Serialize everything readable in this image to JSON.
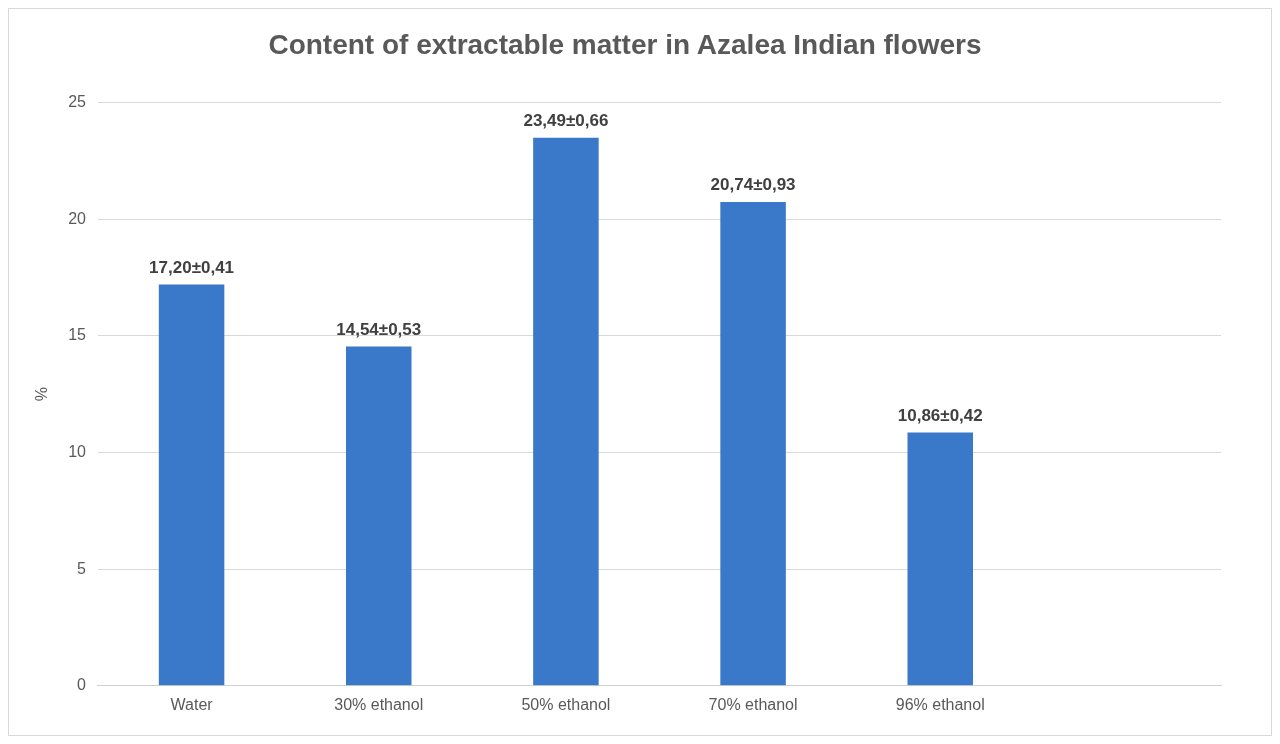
{
  "chart_data": {
    "type": "bar",
    "title": "Content of extractable matter in Azalea Indian flowers",
    "ylabel": "%",
    "categories": [
      "Water",
      "30% ethanol",
      "50% ethanol",
      "70% ethanol",
      "96% ethanol",
      null
    ],
    "values": [
      17.2,
      14.54,
      23.49,
      20.74,
      10.86,
      null
    ],
    "value_labels": [
      "17,20±0,41",
      "14,54±0,53",
      "23,49±0,66",
      "20,74±0,93",
      "10,86±0,42",
      null
    ],
    "color": "#3a78c9",
    "ylim": [
      0,
      25
    ],
    "yticks": [
      0,
      5,
      10,
      15,
      20,
      25
    ],
    "grid": "y",
    "legend": false
  }
}
